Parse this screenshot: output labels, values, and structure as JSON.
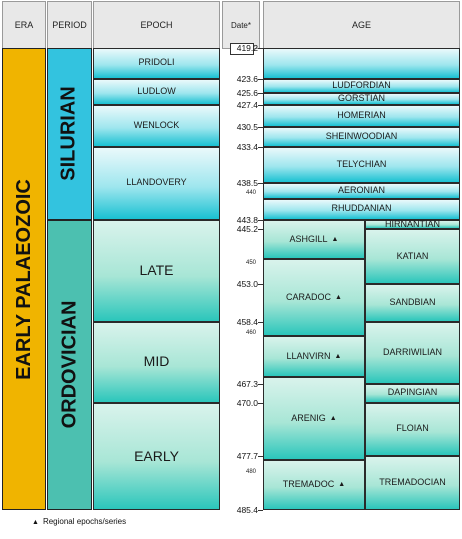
{
  "headers": {
    "era": "ERA",
    "period": "PERIOD",
    "epoch": "EPOCH",
    "date": "Date*",
    "age": "AGE"
  },
  "era": {
    "label": "EARLY PALAEOZOIC",
    "color": "#f0b400"
  },
  "periods": [
    {
      "label": "SILURIAN",
      "from": 419.2,
      "to": 443.8,
      "color": "#33c3df"
    },
    {
      "label": "ORDOVICIAN",
      "from": 443.8,
      "to": 485.4,
      "color": "#4cc0b0"
    }
  ],
  "epochs": [
    {
      "label": "PRIDOLI",
      "from": 419.2,
      "to": 423.6,
      "period": "silurian"
    },
    {
      "label": "LUDLOW",
      "from": 423.6,
      "to": 427.4,
      "period": "silurian"
    },
    {
      "label": "WENLOCK",
      "from": 427.4,
      "to": 433.4,
      "period": "silurian"
    },
    {
      "label": "LLANDOVERY",
      "from": 433.4,
      "to": 443.8,
      "period": "silurian"
    },
    {
      "label": "LATE",
      "from": 443.8,
      "to": 458.4,
      "period": "ordovician"
    },
    {
      "label": "MID",
      "from": 458.4,
      "to": 470.0,
      "period": "ordovician"
    },
    {
      "label": "EARLY",
      "from": 470.0,
      "to": 485.4,
      "period": "ordovician"
    }
  ],
  "silurian_ages": [
    {
      "label": "",
      "from": 419.2,
      "to": 423.6
    },
    {
      "label": "LUDFORDIAN",
      "from": 423.6,
      "to": 425.6
    },
    {
      "label": "GORSTIAN",
      "from": 425.6,
      "to": 427.4
    },
    {
      "label": "HOMERIAN",
      "from": 427.4,
      "to": 430.5
    },
    {
      "label": "SHEINWOODIAN",
      "from": 430.5,
      "to": 433.4
    },
    {
      "label": "TELYCHIAN",
      "from": 433.4,
      "to": 438.5
    },
    {
      "label": "AERONIAN",
      "from": 438.5,
      "to": 440.8
    },
    {
      "label": "RHUDDANIAN",
      "from": 440.8,
      "to": 443.8
    }
  ],
  "regional_series": [
    {
      "label": "ASHGILL",
      "from": 443.8,
      "to": 449.5
    },
    {
      "label": "CARADOC",
      "from": 449.5,
      "to": 460.5
    },
    {
      "label": "LLANVIRN",
      "from": 460.5,
      "to": 466.3
    },
    {
      "label": "ARENIG",
      "from": 466.3,
      "to": 478.3
    },
    {
      "label": "TREMADOC",
      "from": 478.3,
      "to": 485.4
    }
  ],
  "ordovician_ages": [
    {
      "label": "HIRNANTIAN",
      "from": 443.8,
      "to": 445.2
    },
    {
      "label": "KATIAN",
      "from": 445.2,
      "to": 453.0
    },
    {
      "label": "SANDBIAN",
      "from": 453.0,
      "to": 458.4
    },
    {
      "label": "DARRIWILIAN",
      "from": 458.4,
      "to": 467.3
    },
    {
      "label": "DAPINGIAN",
      "from": 467.3,
      "to": 470.0
    },
    {
      "label": "FLOIAN",
      "from": 470.0,
      "to": 477.7
    },
    {
      "label": "TREMADOCIAN",
      "from": 477.7,
      "to": 485.4
    }
  ],
  "dates_major": [
    "419.2",
    "423.6",
    "425.6",
    "427.4",
    "430.5",
    "433.4",
    "438.5",
    "443.8",
    "445.2",
    "453.0",
    "458.4",
    "467.3",
    "470.0",
    "477.7",
    "485.4"
  ],
  "dates_minor": [
    "440",
    "450",
    "460",
    "480"
  ],
  "triangle_symbol": "▲",
  "footnote": "Regional epochs/series"
}
